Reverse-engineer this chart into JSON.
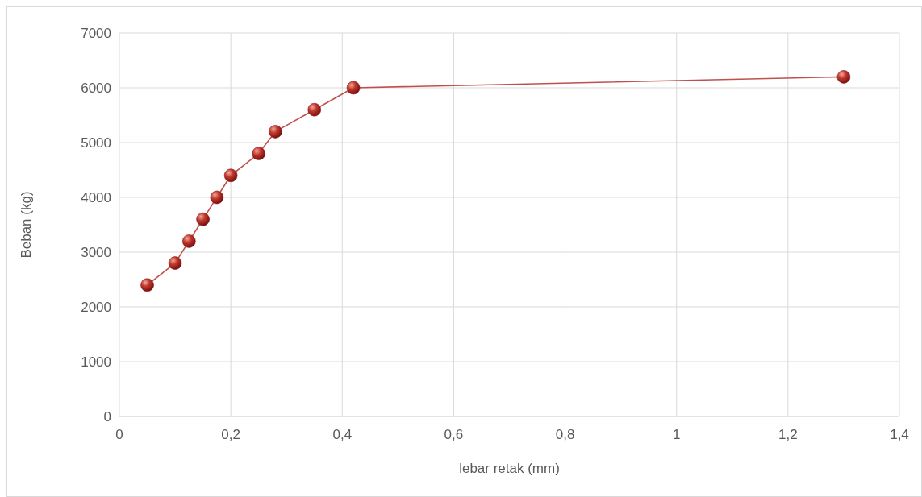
{
  "chart_data": {
    "type": "line",
    "xlabel": "lebar retak (mm)",
    "ylabel": "Beban (kg)",
    "x": [
      0.05,
      0.1,
      0.125,
      0.15,
      0.175,
      0.2,
      0.25,
      0.28,
      0.35,
      0.42,
      1.3
    ],
    "series": [
      {
        "color": "#c0504d",
        "values": [
          2400,
          2800,
          3200,
          3600,
          4000,
          4400,
          4800,
          5200,
          5600,
          6000,
          6200
        ]
      }
    ],
    "xlim": [
      0,
      1.4
    ],
    "xticks": [
      0,
      {
        "value": 0.2,
        "label": "0,2"
      },
      {
        "value": 0.4,
        "label": "0,4"
      },
      {
        "value": 0.6,
        "label": "0,6"
      },
      {
        "value": 0.8,
        "label": "0,8"
      },
      1,
      {
        "value": 1.2,
        "label": "1,2"
      },
      {
        "value": 1.4,
        "label": "1,4"
      }
    ],
    "ylim": [
      0,
      7000
    ],
    "yticks": [
      0,
      1000,
      2000,
      3000,
      4000,
      5000,
      6000,
      7000
    ],
    "grid": true,
    "marker": "circle",
    "line_style": "solid"
  }
}
